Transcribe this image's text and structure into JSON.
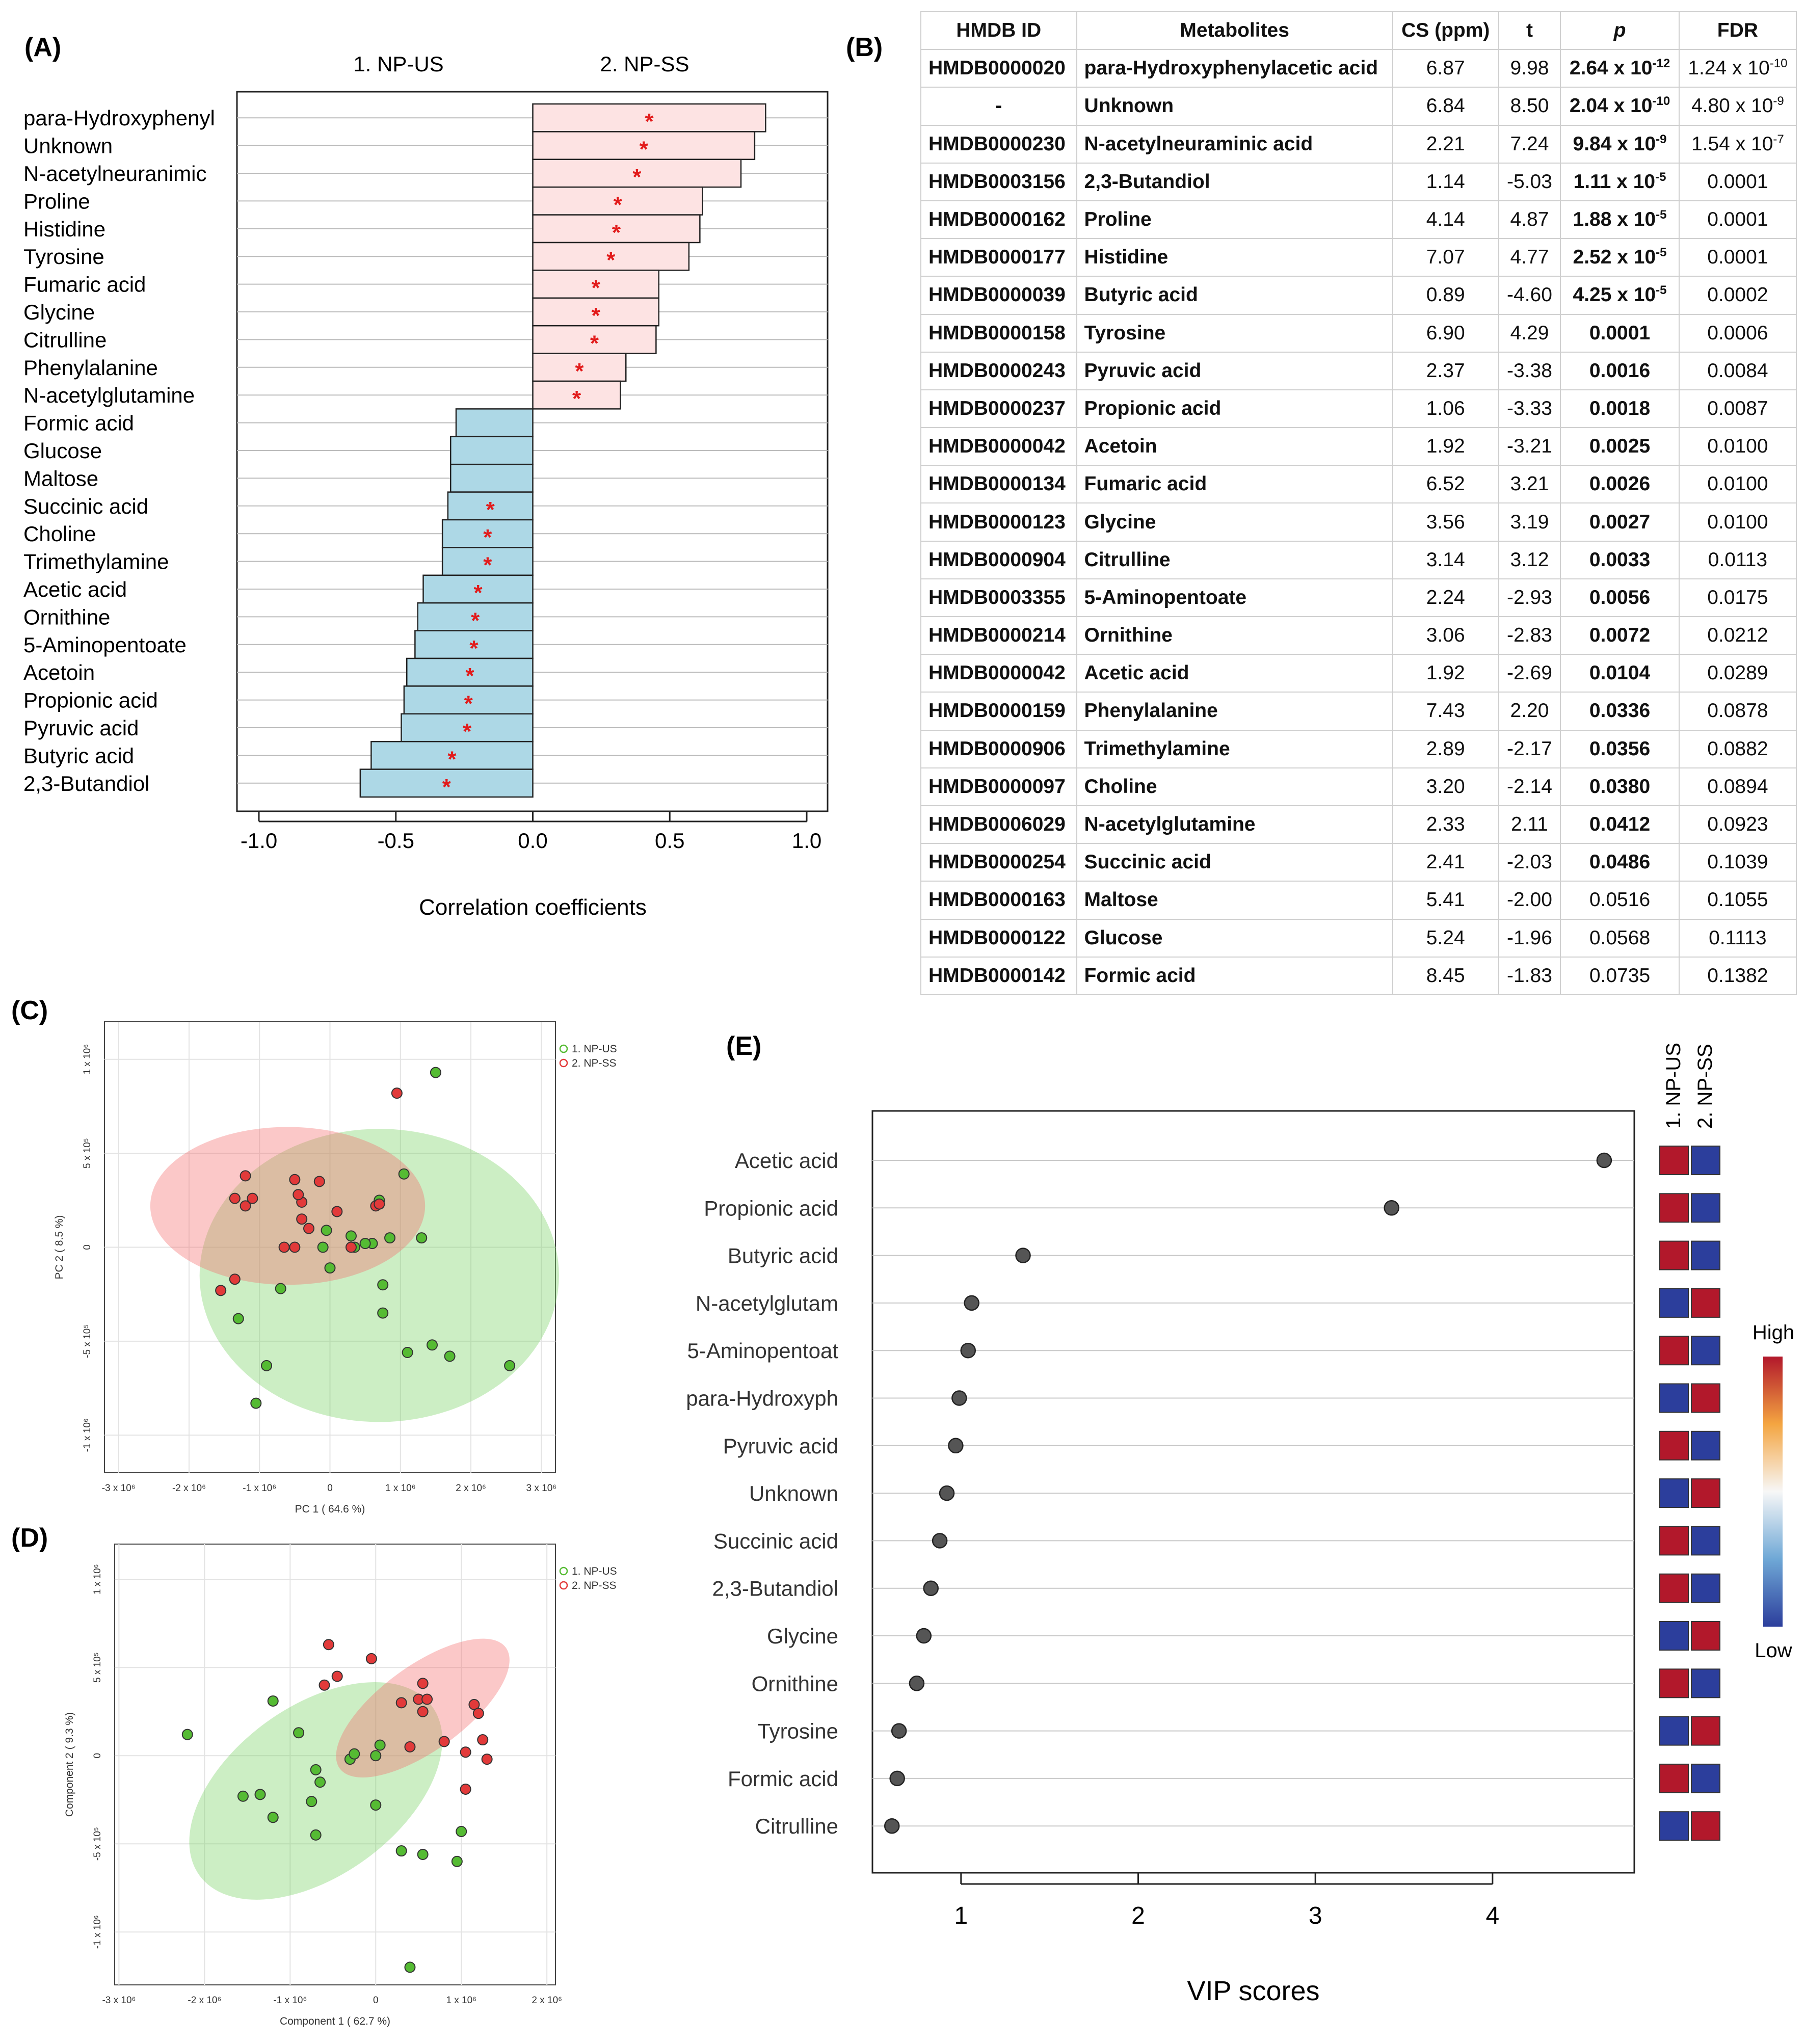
{
  "panel_labels": {
    "A": "(A)",
    "B": "(B)",
    "C": "(C)",
    "D": "(D)",
    "E": "(E)"
  },
  "colors": {
    "positive_bar": "#fde3e3",
    "negative_bar": "#add8e6",
    "star": "#e21b1b",
    "group1": "#55bb33",
    "group2": "#e23a3a",
    "high": "#b2182b",
    "low": "#2c3e9c"
  },
  "chart_data": [
    {
      "id": "A",
      "type": "bar",
      "orientation": "horizontal",
      "xlabel": "Correlation coefficients",
      "xlim": [
        -1.0,
        1.0
      ],
      "xticks": [
        -1.0,
        -0.5,
        0.0,
        0.5,
        1.0
      ],
      "xtick_labels": [
        "-1.0",
        "-0.5",
        "0.0",
        "0.5",
        "1.0"
      ],
      "column_labels": [
        "1. NP-US",
        "2. NP-SS"
      ],
      "star_symbol": "*",
      "categories": [
        "para-Hydroxyphenyl",
        "Unknown",
        "N-acetylneuranimic",
        "Proline",
        "Histidine",
        "Tyrosine",
        "Fumaric acid",
        "Glycine",
        "Citrulline",
        "Phenylalanine",
        "N-acetylglutamine",
        "Formic acid",
        "Glucose",
        "Maltose",
        "Succinic acid",
        "Choline",
        "Trimethylamine",
        "Acetic acid",
        "Ornithine",
        "5-Aminopentoate",
        "Acetoin",
        "Propionic acid",
        "Pyruvic acid",
        "Butyric acid",
        "2,3-Butandiol"
      ],
      "values": [
        0.85,
        0.81,
        0.76,
        0.62,
        0.61,
        0.57,
        0.46,
        0.46,
        0.45,
        0.34,
        0.32,
        -0.28,
        -0.3,
        -0.3,
        -0.31,
        -0.33,
        -0.33,
        -0.4,
        -0.42,
        -0.43,
        -0.46,
        -0.47,
        -0.48,
        -0.59,
        -0.63
      ],
      "significant": [
        true,
        true,
        true,
        true,
        true,
        true,
        true,
        true,
        true,
        true,
        true,
        false,
        false,
        false,
        true,
        true,
        true,
        true,
        true,
        true,
        true,
        true,
        true,
        true,
        true
      ]
    },
    {
      "id": "B",
      "type": "table",
      "columns": [
        "HMDB ID",
        "Metabolites",
        "CS (ppm)",
        "t",
        "p",
        "FDR"
      ],
      "rows": [
        {
          "id": "HMDB0000020",
          "metabolite": "para-Hydroxyphenylacetic acid",
          "cs": "6.87",
          "t": "9.98",
          "p_base": "2.64 x 10",
          "p_exp": "-12",
          "fdr_base": "1.24 x 10",
          "fdr_exp": "-10",
          "sig": true
        },
        {
          "id": "-",
          "metabolite": "Unknown",
          "cs": "6.84",
          "t": "8.50",
          "p_base": "2.04 x 10",
          "p_exp": "-10",
          "fdr_base": "4.80 x 10",
          "fdr_exp": "-9",
          "sig": true
        },
        {
          "id": "HMDB0000230",
          "metabolite": "N-acetylneuraminic acid",
          "cs": "2.21",
          "t": "7.24",
          "p_base": "9.84 x 10",
          "p_exp": "-9",
          "fdr_base": "1.54 x 10",
          "fdr_exp": "-7",
          "sig": true
        },
        {
          "id": "HMDB0003156",
          "metabolite": "2,3-Butandiol",
          "cs": "1.14",
          "t": "-5.03",
          "p_base": "1.11 x 10",
          "p_exp": "-5",
          "fdr_base": "0.0001",
          "fdr_exp": "",
          "sig": true
        },
        {
          "id": "HMDB0000162",
          "metabolite": "Proline",
          "cs": "4.14",
          "t": "4.87",
          "p_base": "1.88 x 10",
          "p_exp": "-5",
          "fdr_base": "0.0001",
          "fdr_exp": "",
          "sig": true
        },
        {
          "id": "HMDB0000177",
          "metabolite": "Histidine",
          "cs": "7.07",
          "t": "4.77",
          "p_base": "2.52 x 10",
          "p_exp": "-5",
          "fdr_base": "0.0001",
          "fdr_exp": "",
          "sig": true
        },
        {
          "id": "HMDB0000039",
          "metabolite": "Butyric acid",
          "cs": "0.89",
          "t": "-4.60",
          "p_base": "4.25 x 10",
          "p_exp": "-5",
          "fdr_base": "0.0002",
          "fdr_exp": "",
          "sig": true
        },
        {
          "id": "HMDB0000158",
          "metabolite": "Tyrosine",
          "cs": "6.90",
          "t": "4.29",
          "p_base": "0.0001",
          "p_exp": "",
          "fdr_base": "0.0006",
          "fdr_exp": "",
          "sig": true
        },
        {
          "id": "HMDB0000243",
          "metabolite": "Pyruvic acid",
          "cs": "2.37",
          "t": "-3.38",
          "p_base": "0.0016",
          "p_exp": "",
          "fdr_base": "0.0084",
          "fdr_exp": "",
          "sig": true
        },
        {
          "id": "HMDB0000237",
          "metabolite": "Propionic acid",
          "cs": "1.06",
          "t": "-3.33",
          "p_base": "0.0018",
          "p_exp": "",
          "fdr_base": "0.0087",
          "fdr_exp": "",
          "sig": true
        },
        {
          "id": "HMDB0000042",
          "metabolite": "Acetoin",
          "cs": "1.92",
          "t": "-3.21",
          "p_base": "0.0025",
          "p_exp": "",
          "fdr_base": "0.0100",
          "fdr_exp": "",
          "sig": true
        },
        {
          "id": "HMDB0000134",
          "metabolite": "Fumaric acid",
          "cs": "6.52",
          "t": "3.21",
          "p_base": "0.0026",
          "p_exp": "",
          "fdr_base": "0.0100",
          "fdr_exp": "",
          "sig": true
        },
        {
          "id": "HMDB0000123",
          "metabolite": "Glycine",
          "cs": "3.56",
          "t": "3.19",
          "p_base": "0.0027",
          "p_exp": "",
          "fdr_base": "0.0100",
          "fdr_exp": "",
          "sig": true
        },
        {
          "id": "HMDB0000904",
          "metabolite": "Citrulline",
          "cs": "3.14",
          "t": "3.12",
          "p_base": "0.0033",
          "p_exp": "",
          "fdr_base": "0.0113",
          "fdr_exp": "",
          "sig": true
        },
        {
          "id": "HMDB0003355",
          "metabolite": "5-Aminopentoate",
          "cs": "2.24",
          "t": "-2.93",
          "p_base": "0.0056",
          "p_exp": "",
          "fdr_base": "0.0175",
          "fdr_exp": "",
          "sig": true
        },
        {
          "id": "HMDB0000214",
          "metabolite": "Ornithine",
          "cs": "3.06",
          "t": "-2.83",
          "p_base": "0.0072",
          "p_exp": "",
          "fdr_base": "0.0212",
          "fdr_exp": "",
          "sig": true
        },
        {
          "id": "HMDB0000042",
          "metabolite": "Acetic acid",
          "cs": "1.92",
          "t": "-2.69",
          "p_base": "0.0104",
          "p_exp": "",
          "fdr_base": "0.0289",
          "fdr_exp": "",
          "sig": true
        },
        {
          "id": "HMDB0000159",
          "metabolite": "Phenylalanine",
          "cs": "7.43",
          "t": "2.20",
          "p_base": "0.0336",
          "p_exp": "",
          "fdr_base": "0.0878",
          "fdr_exp": "",
          "sig": true
        },
        {
          "id": "HMDB0000906",
          "metabolite": "Trimethylamine",
          "cs": "2.89",
          "t": "-2.17",
          "p_base": "0.0356",
          "p_exp": "",
          "fdr_base": "0.0882",
          "fdr_exp": "",
          "sig": true
        },
        {
          "id": "HMDB0000097",
          "metabolite": "Choline",
          "cs": "3.20",
          "t": "-2.14",
          "p_base": "0.0380",
          "p_exp": "",
          "fdr_base": "0.0894",
          "fdr_exp": "",
          "sig": true
        },
        {
          "id": "HMDB0006029",
          "metabolite": "N-acetylglutamine",
          "cs": "2.33",
          "t": "2.11",
          "p_base": "0.0412",
          "p_exp": "",
          "fdr_base": "0.0923",
          "fdr_exp": "",
          "sig": true
        },
        {
          "id": "HMDB0000254",
          "metabolite": "Succinic acid",
          "cs": "2.41",
          "t": "-2.03",
          "p_base": "0.0486",
          "p_exp": "",
          "fdr_base": "0.1039",
          "fdr_exp": "",
          "sig": true
        },
        {
          "id": "HMDB0000163",
          "metabolite": "Maltose",
          "cs": "5.41",
          "t": "-2.00",
          "p_base": "0.0516",
          "p_exp": "",
          "fdr_base": "0.1055",
          "fdr_exp": "",
          "sig": false
        },
        {
          "id": "HMDB0000122",
          "metabolite": "Glucose",
          "cs": "5.24",
          "t": "-1.96",
          "p_base": "0.0568",
          "p_exp": "",
          "fdr_base": "0.1113",
          "fdr_exp": "",
          "sig": false
        },
        {
          "id": "HMDB0000142",
          "metabolite": "Formic acid",
          "cs": "8.45",
          "t": "-1.83",
          "p_base": "0.0735",
          "p_exp": "",
          "fdr_base": "0.1382",
          "fdr_exp": "",
          "sig": false
        }
      ]
    },
    {
      "id": "C",
      "type": "scatter",
      "xlabel": "PC 1 ( 64.6 %)",
      "ylabel": "PC 2 ( 8.5 %)",
      "xlim": [
        -3.2,
        3.2
      ],
      "ylim": [
        -1.2,
        1.2
      ],
      "xticks": [
        -3,
        -2,
        -1,
        0,
        1,
        2,
        3
      ],
      "xtick_labels": [
        "-3 x 10⁶",
        "-2 x 10⁶",
        "-1 x 10⁶",
        "0",
        "1 x 10⁶",
        "2 x 10⁶",
        "3 x 10⁶"
      ],
      "yticks": [
        -1,
        -0.5,
        0,
        0.5,
        1
      ],
      "ytick_labels": [
        "-1 x 10⁶",
        "-5 x 10⁵",
        "0",
        "5 x 10⁵",
        "1 x 10⁶"
      ],
      "legend": [
        "1. NP-US",
        "2. NP-SS"
      ],
      "ellipses": [
        {
          "group": 0,
          "cx": 0.7,
          "cy": -0.15,
          "rx": 2.55,
          "ry": 0.78,
          "angle": 0
        },
        {
          "group": 1,
          "cx": -0.6,
          "cy": 0.22,
          "rx": 1.95,
          "ry": 0.42,
          "angle": 0
        }
      ],
      "series": [
        {
          "name": "1. NP-US",
          "x": [
            1.5,
            1.05,
            1.3,
            0.35,
            0.6,
            0.75,
            0.0,
            -0.1,
            -0.7,
            -1.3,
            -0.05,
            1.1,
            0.75,
            1.45,
            1.7,
            2.55,
            -0.9,
            -1.05,
            0.5,
            0.85,
            0.7,
            0.3
          ],
          "y": [
            0.93,
            0.39,
            0.05,
            0.0,
            0.02,
            -0.2,
            -0.11,
            0.0,
            -0.22,
            -0.38,
            0.09,
            -0.56,
            -0.35,
            -0.52,
            -0.58,
            -0.63,
            -0.63,
            -0.83,
            0.02,
            0.05,
            0.25,
            0.06
          ]
        },
        {
          "name": "2. NP-SS",
          "x": [
            0.95,
            -1.2,
            -1.35,
            -1.1,
            -1.2,
            -0.5,
            -0.15,
            0.65,
            0.7,
            -0.3,
            -0.4,
            -0.5,
            -0.65,
            -1.55,
            -1.35,
            0.3,
            -0.4,
            -0.45,
            0.1
          ],
          "y": [
            0.82,
            0.38,
            0.26,
            0.26,
            0.22,
            0.36,
            0.35,
            0.22,
            0.23,
            0.1,
            0.15,
            0.0,
            0.0,
            -0.23,
            -0.17,
            0.0,
            0.24,
            0.28,
            0.19
          ]
        }
      ]
    },
    {
      "id": "D",
      "type": "scatter",
      "xlabel": "Component 1 ( 62.7 %)",
      "ylabel": "Component 2 ( 9.3 %)",
      "xlim": [
        -3.05,
        2.1
      ],
      "ylim": [
        -1.3,
        1.2
      ],
      "xticks": [
        -3,
        -2,
        -1,
        0,
        1,
        2
      ],
      "xtick_labels": [
        "-3 x 10⁶",
        "-2 x 10⁶",
        "-1 x 10⁶",
        "0",
        "1 x 10⁶",
        "2 x 10⁶"
      ],
      "yticks": [
        -1,
        -0.5,
        0,
        0.5,
        1
      ],
      "ytick_labels": [
        "-1 x 10⁶",
        "-5 x 10⁵",
        "0",
        "5 x 10⁵",
        "1 x 10⁶"
      ],
      "legend": [
        "1. NP-US",
        "2. NP-SS"
      ],
      "ellipses": [
        {
          "group": 0,
          "cx": -0.7,
          "cy": -0.2,
          "rx": 1.68,
          "ry": 0.48,
          "angle": 36
        },
        {
          "group": 1,
          "cx": 0.55,
          "cy": 0.27,
          "rx": 1.2,
          "ry": 0.24,
          "angle": 36
        }
      ],
      "series": [
        {
          "name": "1. NP-US",
          "x": [
            -2.2,
            -1.2,
            -0.9,
            -0.7,
            -0.65,
            -0.3,
            -0.25,
            0.0,
            0.05,
            -1.55,
            -1.35,
            -1.2,
            -0.75,
            -0.7,
            0.0,
            0.3,
            0.55,
            0.95,
            1.0,
            0.4
          ],
          "y": [
            0.12,
            0.31,
            0.13,
            -0.08,
            -0.15,
            -0.02,
            0.01,
            0.0,
            0.06,
            -0.23,
            -0.22,
            -0.35,
            -0.26,
            -0.45,
            -0.28,
            -0.54,
            -0.56,
            -0.6,
            -0.43,
            -1.2
          ]
        },
        {
          "name": "2. NP-SS",
          "x": [
            -0.55,
            -0.45,
            -0.6,
            -0.05,
            0.3,
            0.5,
            0.55,
            0.6,
            0.55,
            1.15,
            1.2,
            0.4,
            0.8,
            1.05,
            1.25,
            1.3,
            1.05
          ],
          "y": [
            0.63,
            0.45,
            0.4,
            0.55,
            0.3,
            0.32,
            0.41,
            0.32,
            0.25,
            0.29,
            0.24,
            0.05,
            0.08,
            0.02,
            0.09,
            -0.02,
            -0.19
          ]
        }
      ]
    },
    {
      "id": "E",
      "type": "scatter",
      "subtype": "dot",
      "xlabel": "VIP scores",
      "xlim": [
        0.5,
        4.8
      ],
      "xticks": [
        1,
        2,
        3,
        4
      ],
      "xtick_labels": [
        "1",
        "2",
        "3",
        "4"
      ],
      "column_labels": [
        "1. NP-US",
        "2. NP-SS"
      ],
      "legend_high": "High",
      "legend_low": "Low",
      "categories": [
        "Acetic acid",
        "Propionic acid",
        "Butyric acid",
        "N-acetylglutam",
        "5-Aminopentoat",
        "para-Hydroxyph",
        "Pyruvic acid",
        "Unknown",
        "Succinic acid",
        "2,3-Butandiol",
        "Glycine",
        "Ornithine",
        "Tyrosine",
        "Formic acid",
        "Citrulline"
      ],
      "values": [
        4.63,
        3.43,
        1.35,
        1.06,
        1.04,
        0.99,
        0.97,
        0.92,
        0.88,
        0.83,
        0.79,
        0.75,
        0.65,
        0.64,
        0.61
      ],
      "heatmap": [
        [
          "high",
          "low"
        ],
        [
          "high",
          "low"
        ],
        [
          "high",
          "low"
        ],
        [
          "low",
          "high"
        ],
        [
          "high",
          "low"
        ],
        [
          "low",
          "high"
        ],
        [
          "high",
          "low"
        ],
        [
          "low",
          "high"
        ],
        [
          "high",
          "low"
        ],
        [
          "high",
          "low"
        ],
        [
          "low",
          "high"
        ],
        [
          "high",
          "low"
        ],
        [
          "low",
          "high"
        ],
        [
          "high",
          "low"
        ],
        [
          "low",
          "high"
        ]
      ]
    }
  ]
}
